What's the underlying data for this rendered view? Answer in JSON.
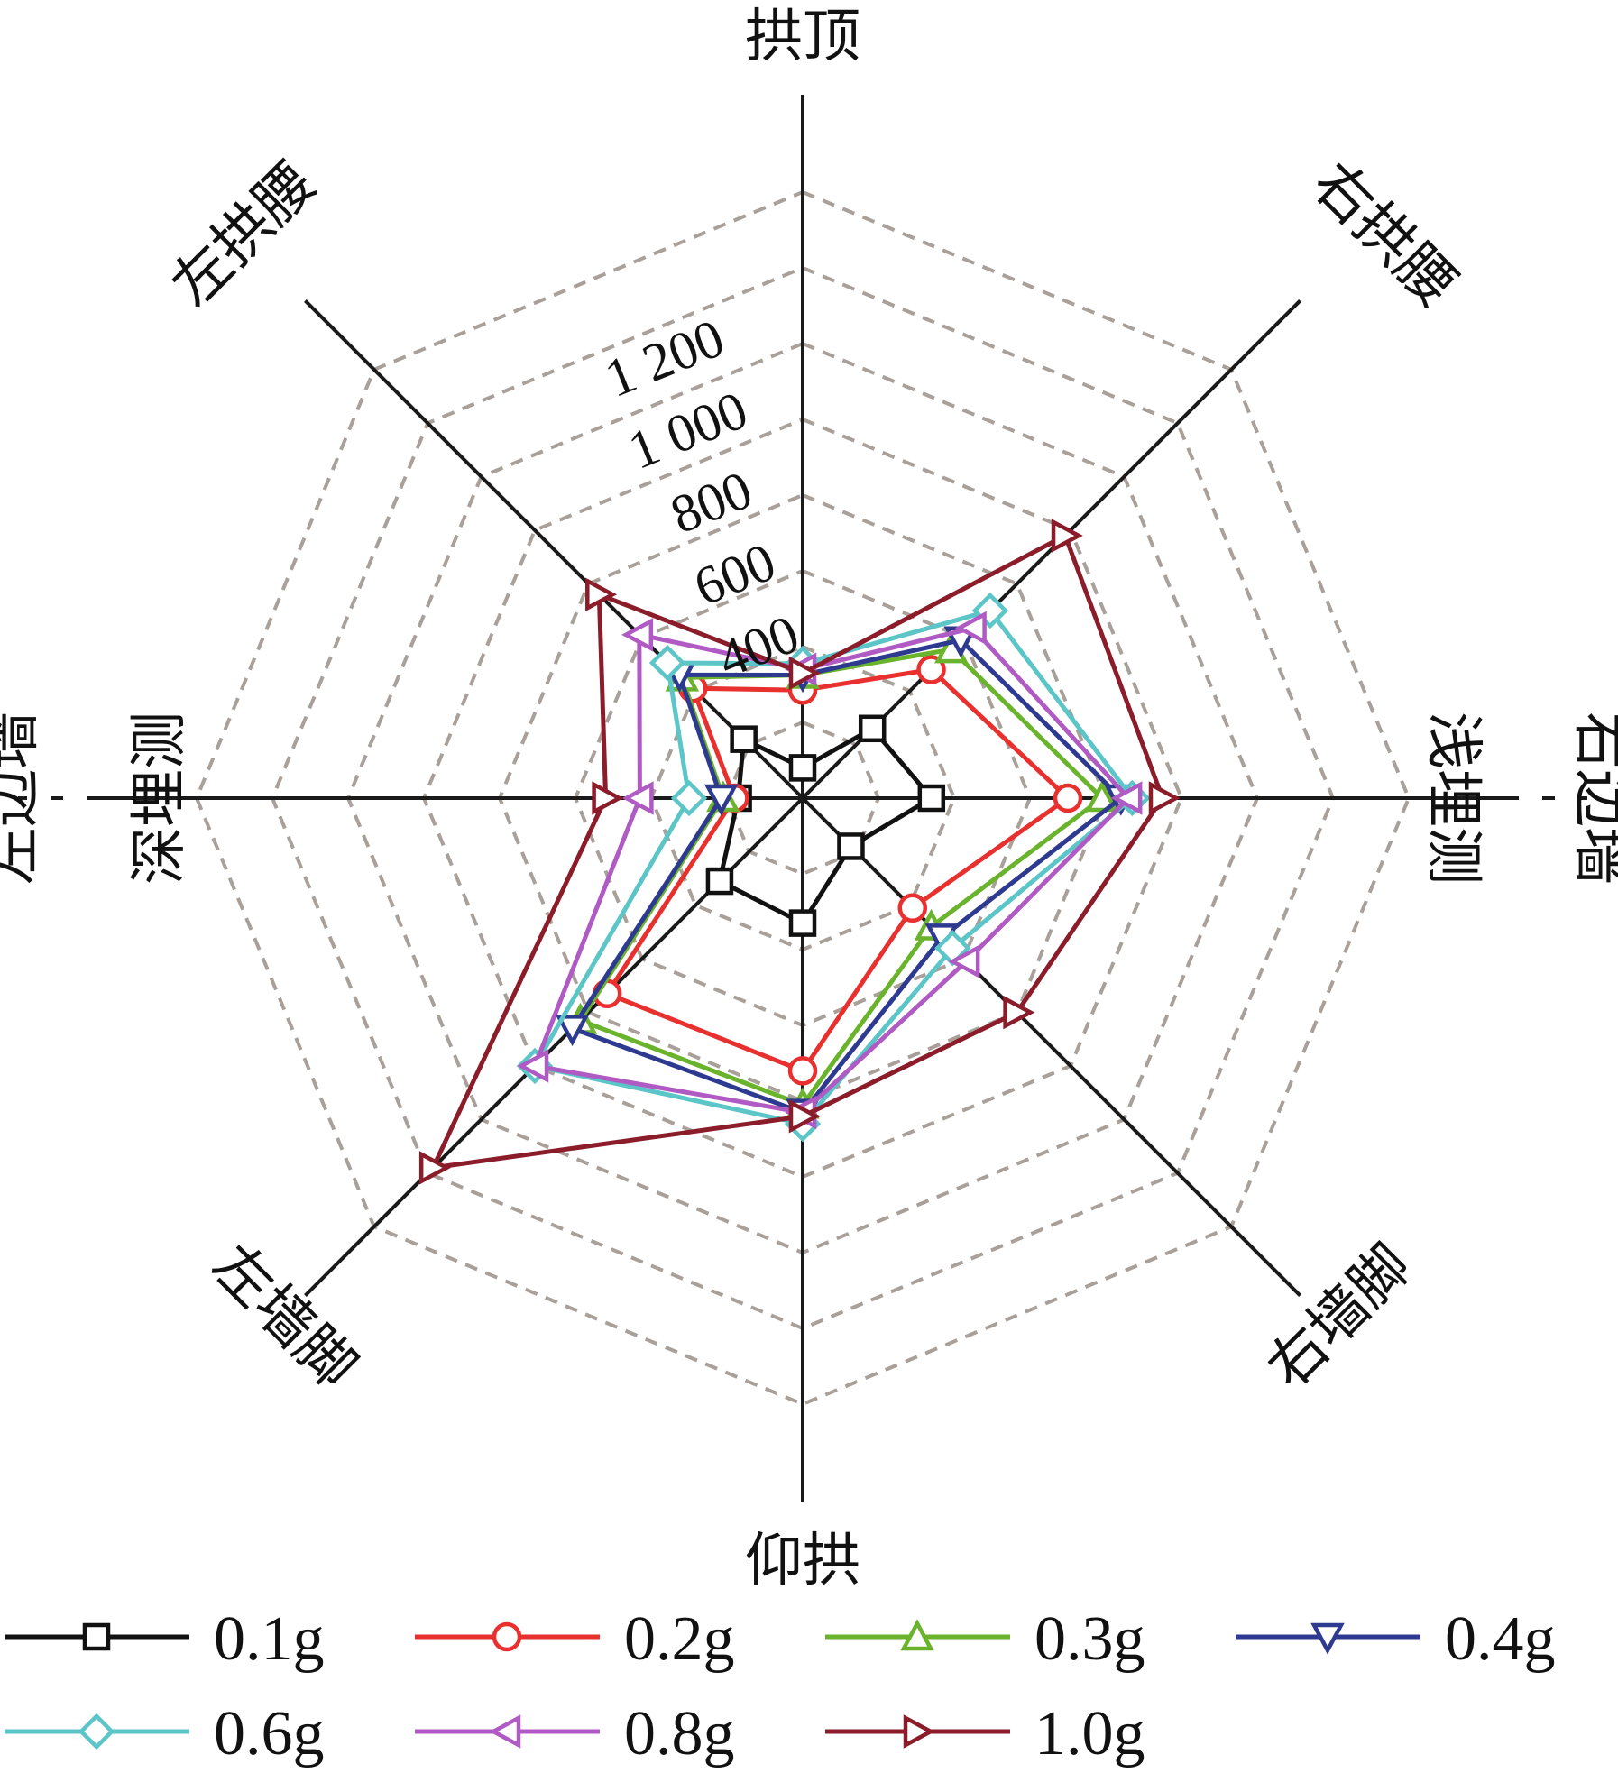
{
  "chart_data": {
    "type": "radar",
    "title": "",
    "axes": [
      "拱顶",
      "右拱腰",
      "右边墙",
      "右墙脚",
      "仰拱",
      "左墙脚",
      "左边墙",
      "左拱腰"
    ],
    "inner_labels": {
      "right": "浅埋测",
      "left": "深埋测"
    },
    "radial_ticks": [
      400,
      600,
      800,
      1000,
      1200
    ],
    "radial_tick_labels": [
      "400",
      "600",
      "800",
      "1 000",
      "1 200"
    ],
    "r_min": 0,
    "r_max": 1600,
    "grid": "dashed octagons",
    "legend_position": "bottom",
    "series": [
      {
        "name": "0.1g",
        "color": "#111111",
        "marker": "square",
        "values": [
          80,
          260,
          340,
          180,
          330,
          310,
          170,
          220
        ]
      },
      {
        "name": "0.2g",
        "color": "#e8302e",
        "marker": "circle",
        "values": [
          285,
          480,
          700,
          410,
          720,
          730,
          180,
          410
        ]
      },
      {
        "name": "0.3g",
        "color": "#6ab42d",
        "marker": "triangle-up",
        "values": [
          325,
          555,
          790,
          480,
          810,
          830,
          210,
          450
        ]
      },
      {
        "name": "0.4g",
        "color": "#2e3a8f",
        "marker": "triangle-down",
        "values": [
          325,
          590,
          840,
          520,
          830,
          860,
          215,
          460
        ]
      },
      {
        "name": "0.6g",
        "color": "#5bc5c8",
        "marker": "diamond",
        "values": [
          355,
          700,
          870,
          560,
          860,
          1000,
          300,
          505
        ]
      },
      {
        "name": "0.8g",
        "color": "#b05bc4",
        "marker": "triangle-left",
        "values": [
          340,
          635,
          860,
          610,
          830,
          1000,
          430,
          610
        ]
      },
      {
        "name": "1.0g",
        "color": "#8b1c2a",
        "marker": "triangle-right",
        "values": [
          330,
          980,
          950,
          800,
          840,
          1380,
          520,
          760
        ]
      }
    ]
  }
}
